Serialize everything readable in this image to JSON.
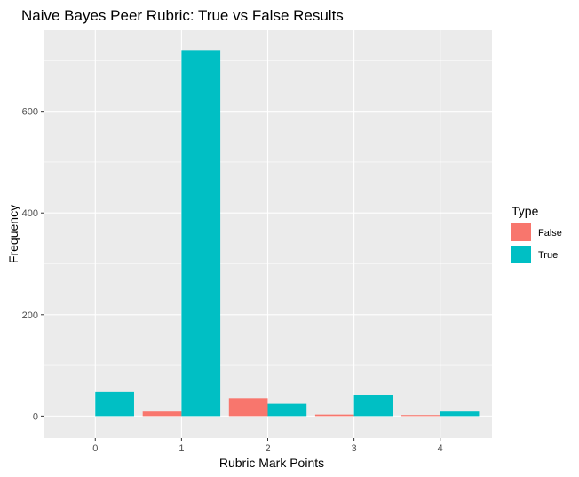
{
  "chart_data": {
    "type": "bar",
    "title": "Naive Bayes Peer Rubric: True vs False Results",
    "xlabel": "Rubric Mark Points",
    "ylabel": "Frequency",
    "categories": [
      "0",
      "1",
      "2",
      "3",
      "4"
    ],
    "y_ticks": [
      0,
      200,
      400,
      600
    ],
    "ylim": [
      -43,
      760
    ],
    "grid": true,
    "legend": {
      "title": "Type",
      "position": "right"
    },
    "series": [
      {
        "name": "False",
        "color": "#F8766D",
        "values": [
          0,
          9,
          35,
          3,
          2
        ]
      },
      {
        "name": "True",
        "color": "#00BFC4",
        "values": [
          48,
          721,
          24,
          41,
          9
        ]
      }
    ]
  },
  "colors": {
    "panel_background": "#EBEBEB",
    "grid": "#FFFFFF",
    "tick_text": "#4D4D4D"
  }
}
